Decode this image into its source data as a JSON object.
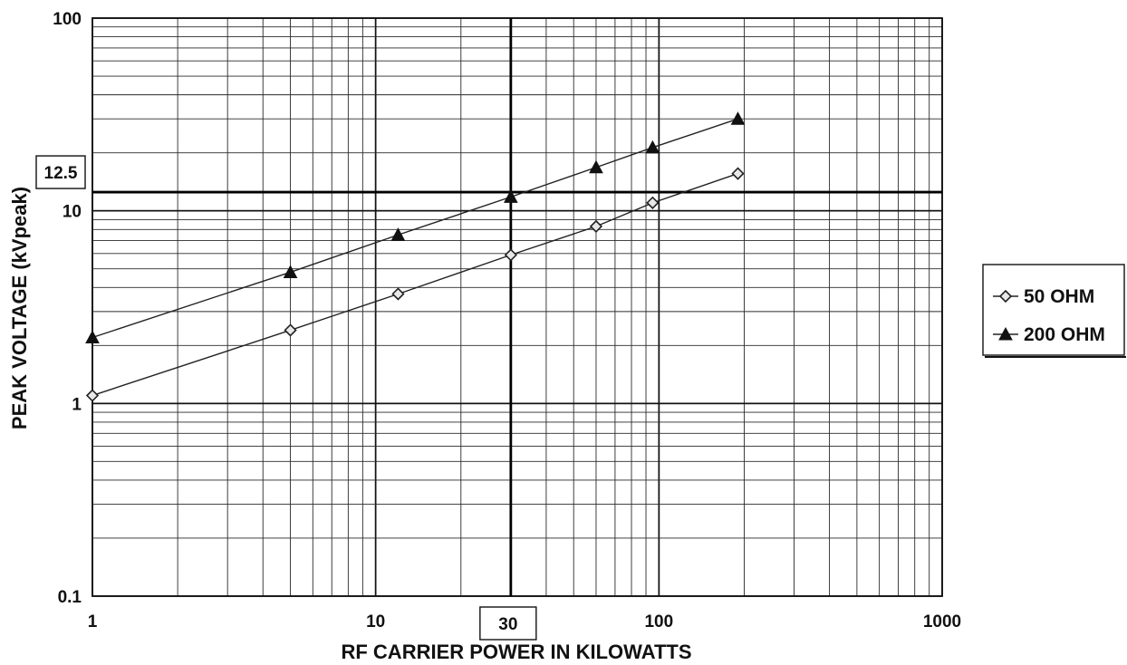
{
  "chart_data": {
    "type": "line",
    "title": "",
    "xlabel": "RF CARRIER POWER IN KILOWATTS",
    "ylabel": "PEAK VOLTAGE (kVpeak)",
    "x_scale": "log",
    "y_scale": "log",
    "xlim": [
      1,
      1000
    ],
    "ylim": [
      0.1,
      100
    ],
    "x_ticks": [
      "1",
      "10",
      "100",
      "1000"
    ],
    "y_ticks": [
      "0.1",
      "1",
      "10",
      "100"
    ],
    "grid": true,
    "legend_position": "right",
    "series": [
      {
        "name": "50 OHM",
        "marker": "diamond",
        "points": [
          [
            1,
            1.1
          ],
          [
            5,
            2.4
          ],
          [
            12,
            3.7
          ],
          [
            30,
            5.9
          ],
          [
            60,
            8.3
          ],
          [
            95,
            11
          ],
          [
            190,
            15.6
          ]
        ]
      },
      {
        "name": "200 OHM",
        "marker": "triangle",
        "points": [
          [
            1,
            2.2
          ],
          [
            5,
            4.8
          ],
          [
            12,
            7.5
          ],
          [
            30,
            11.8
          ],
          [
            60,
            16.8
          ],
          [
            95,
            21.3
          ],
          [
            190,
            30
          ]
        ]
      }
    ],
    "annotations": {
      "x_reference": {
        "value": 30,
        "label": "30"
      },
      "y_reference": {
        "value": 12.5,
        "label": "12.5"
      }
    }
  }
}
